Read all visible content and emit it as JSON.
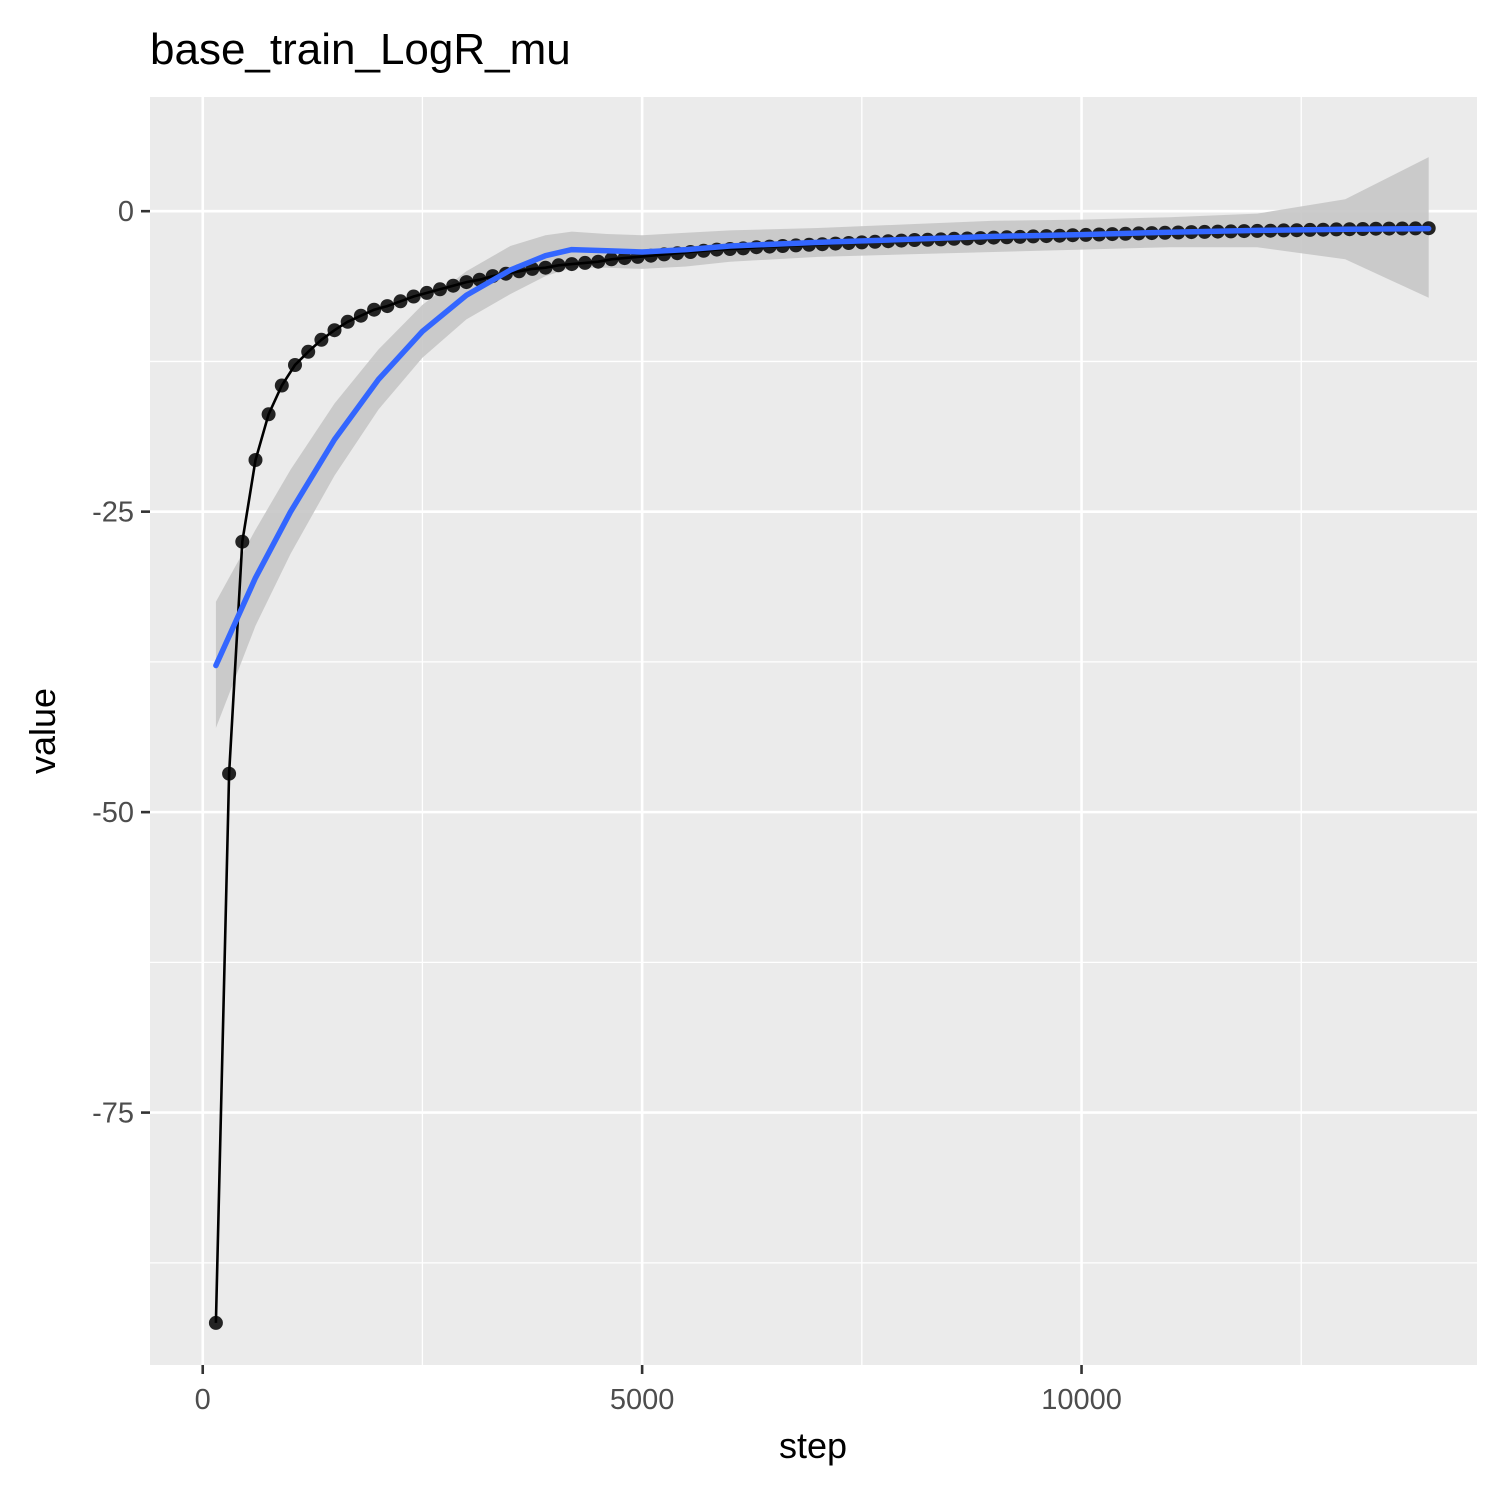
{
  "chart_data": {
    "type": "line",
    "title": "base_train_LogR_mu",
    "xlabel": "step",
    "ylabel": "value",
    "xlim": [
      -600,
      14500
    ],
    "ylim": [
      -96,
      9.5
    ],
    "x_ticks": [
      0,
      5000,
      10000
    ],
    "x_tick_labels": [
      "0",
      "5000",
      "10000"
    ],
    "y_ticks": [
      0,
      -25,
      -50,
      -75
    ],
    "y_tick_labels": [
      "0",
      "-25",
      "-50",
      "-75"
    ],
    "grid": true,
    "legend": "none",
    "colors": {
      "panel_background": "#ebebeb",
      "grid": "#ffffff",
      "points": "#000000",
      "smooth_line": "#3366ff",
      "confidence_band": "#c6c6c6"
    },
    "series": [
      {
        "type": "line+points",
        "x": [
          150,
          300,
          450,
          600,
          750,
          900,
          1050,
          1200,
          1350,
          1500,
          1650,
          1800,
          1950,
          2100,
          2250,
          2400,
          2550,
          2700,
          2850,
          3000,
          3150,
          3300,
          3450,
          3600,
          3750,
          3900,
          4050,
          4200,
          4350,
          4500,
          4650,
          4800,
          4950,
          5100,
          5250,
          5400,
          5550,
          5700,
          5850,
          6000,
          6150,
          6300,
          6450,
          6600,
          6750,
          6900,
          7050,
          7200,
          7350,
          7500,
          7650,
          7800,
          7950,
          8100,
          8250,
          8400,
          8550,
          8700,
          8850,
          9000,
          9150,
          9300,
          9450,
          9600,
          9750,
          9900,
          10050,
          10200,
          10350,
          10500,
          10650,
          10800,
          10950,
          11100,
          11250,
          11400,
          11550,
          11700,
          11850,
          12000,
          12150,
          12300,
          12450,
          12600,
          12750,
          12900,
          13050,
          13200,
          13350,
          13500,
          13650,
          13800,
          13950
        ],
        "y": [
          -92.5,
          -46.8,
          -27.5,
          -20.7,
          -16.9,
          -14.5,
          -12.8,
          -11.7,
          -10.7,
          -9.9,
          -9.2,
          -8.7,
          -8.2,
          -7.9,
          -7.5,
          -7.1,
          -6.8,
          -6.5,
          -6.2,
          -5.9,
          -5.7,
          -5.4,
          -5.2,
          -5.0,
          -4.8,
          -4.7,
          -4.5,
          -4.4,
          -4.3,
          -4.2,
          -4.0,
          -3.9,
          -3.8,
          -3.7,
          -3.6,
          -3.5,
          -3.4,
          -3.3,
          -3.2,
          -3.15,
          -3.1,
          -3.0,
          -2.95,
          -2.9,
          -2.85,
          -2.8,
          -2.75,
          -2.7,
          -2.65,
          -2.6,
          -2.55,
          -2.5,
          -2.45,
          -2.4,
          -2.38,
          -2.35,
          -2.3,
          -2.27,
          -2.24,
          -2.2,
          -2.17,
          -2.14,
          -2.1,
          -2.07,
          -2.04,
          -2.0,
          -1.97,
          -1.94,
          -1.91,
          -1.88,
          -1.85,
          -1.82,
          -1.8,
          -1.77,
          -1.74,
          -1.72,
          -1.7,
          -1.68,
          -1.66,
          -1.64,
          -1.62,
          -1.6,
          -1.58,
          -1.56,
          -1.54,
          -1.52,
          -1.5,
          -1.48,
          -1.46,
          -1.45,
          -1.44,
          -1.43,
          -1.42
        ]
      },
      {
        "type": "smooth",
        "x": [
          150,
          600,
          1000,
          1500,
          2000,
          2500,
          3000,
          3500,
          3900,
          4200,
          4600,
          5000,
          5500,
          6000,
          7000,
          8000,
          9000,
          10000,
          11000,
          12000,
          13000,
          13950
        ],
        "y": [
          -37.8,
          -30.5,
          -25.0,
          -19.0,
          -14.0,
          -10.0,
          -7.0,
          -4.9,
          -3.7,
          -3.2,
          -3.3,
          -3.4,
          -3.2,
          -2.9,
          -2.6,
          -2.35,
          -2.1,
          -1.95,
          -1.75,
          -1.6,
          -1.5,
          -1.45
        ],
        "band_upper": [
          -32.5,
          -26.5,
          -21.5,
          -16.0,
          -11.5,
          -7.8,
          -5.0,
          -2.9,
          -2.0,
          -1.7,
          -1.9,
          -2.0,
          -1.8,
          -1.6,
          -1.4,
          -1.1,
          -0.8,
          -0.7,
          -0.5,
          -0.2,
          1.0,
          4.5
        ],
        "band_lower": [
          -43.0,
          -34.5,
          -28.5,
          -22.0,
          -16.5,
          -12.2,
          -9.0,
          -6.9,
          -5.4,
          -4.7,
          -4.7,
          -4.8,
          -4.6,
          -4.2,
          -3.8,
          -3.6,
          -3.4,
          -3.2,
          -3.0,
          -3.0,
          -4.0,
          -7.2
        ]
      }
    ]
  }
}
